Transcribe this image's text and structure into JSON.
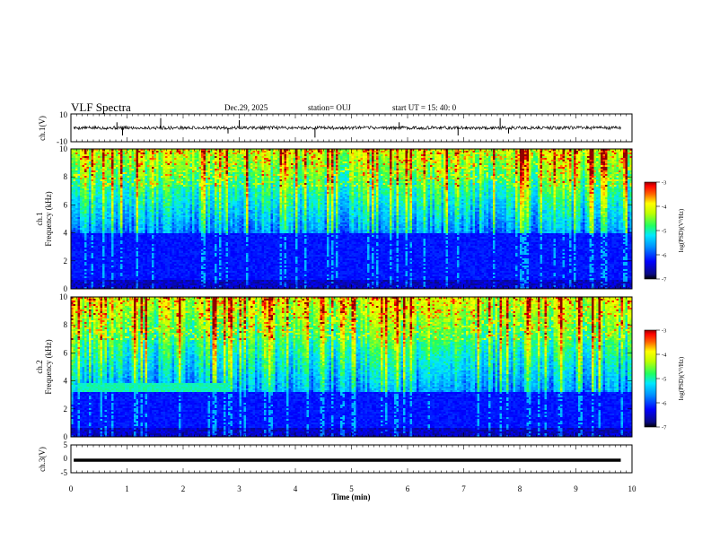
{
  "header": {
    "title": "VLF Spectra",
    "date": "Dec.29, 2025",
    "station": "station= OUJ",
    "start_time": "start  UT  =   15: 40: 0"
  },
  "colors": {
    "waveform": "#000000",
    "colormap": [
      "#000000",
      "#1a0a7a",
      "#0000ff",
      "#0080ff",
      "#00e0ff",
      "#20ff80",
      "#b0ff00",
      "#ffff00",
      "#ff8000",
      "#ff0000",
      "#8b0000"
    ]
  },
  "chart_data": [
    {
      "type": "line",
      "panel": "ch1-waveform",
      "ylabel": "ch.1(V)",
      "ylim": [
        -10,
        10
      ],
      "yticks": [
        "10",
        "-10"
      ],
      "xlim": [
        0,
        10
      ],
      "baseline": 0,
      "note_noise_amplitude": 1.2,
      "spikes_x": [
        0.82,
        0.92,
        1.6,
        2.8,
        3.0,
        4.35,
        5.85,
        6.9,
        7.65,
        7.8
      ]
    },
    {
      "type": "heatmap",
      "panel": "ch1-spectrogram",
      "ylabel": "ch.1\nFrequency (kHz)",
      "ylim": [
        0,
        10
      ],
      "yticks": [
        "0",
        "2",
        "4",
        "6",
        "8",
        "10"
      ],
      "xlim": [
        0,
        10
      ],
      "colorbar": {
        "label": "log(PSD)(V²/Hz)",
        "range": [
          -7,
          -3
        ],
        "ticks": [
          "-3",
          "-4",
          "-5",
          "-6",
          "-7"
        ]
      },
      "low_band_khz": [
        0,
        4
      ],
      "seed": 11
    },
    {
      "type": "heatmap",
      "panel": "ch2-spectrogram",
      "ylabel": "ch.2\nFrequency (kHz)",
      "ylim": [
        0,
        10
      ],
      "yticks": [
        "0",
        "2",
        "4",
        "6",
        "8",
        "10"
      ],
      "xlim": [
        0,
        10
      ],
      "colorbar": {
        "label": "log(PSD)(V²/Hz)",
        "range": [
          -7,
          -3
        ],
        "ticks": [
          "-3",
          "-4",
          "-5",
          "-6",
          "-7"
        ]
      },
      "low_band_khz": [
        0,
        3.2
      ],
      "emission_band": {
        "x": [
          0.1,
          2.8
        ],
        "freq_khz": [
          3.2,
          3.9
        ]
      },
      "seed": 29
    },
    {
      "type": "line",
      "panel": "ch3-waveform",
      "ylabel": "ch.3(V)",
      "ylim": [
        -5,
        5
      ],
      "yticks": [
        "5",
        "0",
        "-5"
      ],
      "xlim": [
        0,
        10
      ],
      "baseline": -0.5
    }
  ],
  "x_axis": {
    "label": "Time (min)",
    "ticks": [
      "0",
      "1",
      "2",
      "3",
      "4",
      "5",
      "6",
      "7",
      "8",
      "9",
      "10"
    ]
  }
}
